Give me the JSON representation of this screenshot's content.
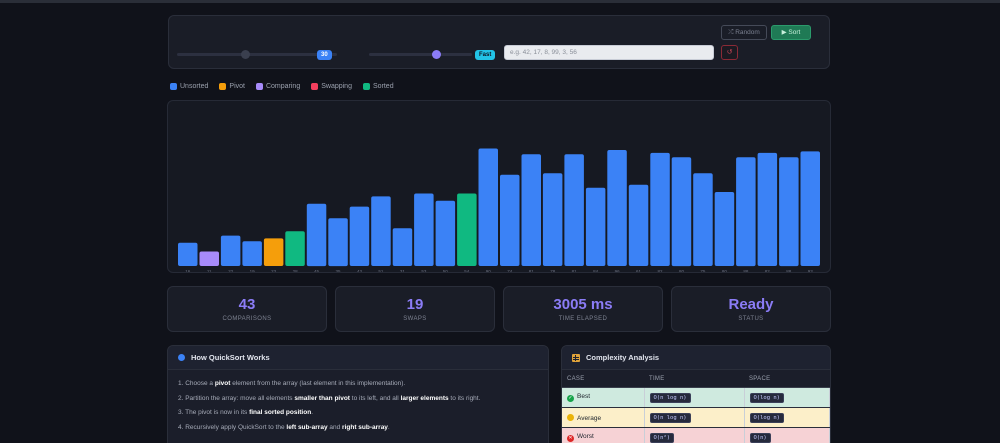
{
  "controls": {
    "size_value": "30",
    "speed_label": "Fast",
    "array_input_placeholder": "e.g. 42, 17, 8, 99, 3, 56",
    "random_button": "⤮ Random",
    "sort_button": "▶ Sort",
    "reset_button": "↺",
    "size_slider_level": 0.5,
    "speed_slider_level": 0.67
  },
  "legend": [
    {
      "label": "Unsorted",
      "color": "#3b82f6"
    },
    {
      "label": "Pivot",
      "color": "#f59e0b"
    },
    {
      "label": "Comparing",
      "color": "#a78bfa"
    },
    {
      "label": "Swapping",
      "color": "#f43f5e"
    },
    {
      "label": "Sorted",
      "color": "#10b981"
    }
  ],
  "chart_data": {
    "type": "bar",
    "values": [
      16,
      11,
      22,
      19,
      23,
      28,
      45,
      35,
      43,
      51,
      31,
      53,
      50,
      54,
      90,
      74,
      81,
      78,
      81,
      84,
      96,
      61,
      82,
      80,
      75,
      80,
      88,
      82,
      88,
      93
    ],
    "heights": [
      16,
      10,
      21,
      17,
      19,
      24,
      43,
      33,
      41,
      48,
      26,
      50,
      45,
      50,
      81,
      63,
      77,
      64,
      77,
      54,
      80,
      56,
      78,
      75,
      64,
      51,
      75,
      78,
      75,
      79
    ],
    "states": [
      "unsorted",
      "comparing",
      "unsorted",
      "unsorted",
      "pivot",
      "sorted",
      "unsorted",
      "unsorted",
      "unsorted",
      "unsorted",
      "unsorted",
      "unsorted",
      "unsorted",
      "sorted",
      "unsorted",
      "unsorted",
      "unsorted",
      "unsorted",
      "unsorted",
      "unsorted",
      "unsorted",
      "unsorted",
      "unsorted",
      "unsorted",
      "unsorted",
      "unsorted",
      "unsorted",
      "unsorted",
      "unsorted",
      "unsorted"
    ],
    "colors": {
      "unsorted": "#3b82f6",
      "pivot": "#f59e0b",
      "comparing": "#a78bfa",
      "swapping": "#f43f5e",
      "sorted": "#10b981"
    },
    "ylim": [
      0,
      100
    ]
  },
  "stats": [
    {
      "value": "43",
      "label": "COMPARISONS"
    },
    {
      "value": "19",
      "label": "SWAPS"
    },
    {
      "value": "3005 ms",
      "label": "TIME ELAPSED"
    },
    {
      "value": "Ready",
      "label": "STATUS"
    }
  ],
  "howto": {
    "title": "How QuickSort Works"
  },
  "complexity": {
    "title": "Complexity Analysis",
    "headers": [
      "CASE",
      "TIME",
      "SPACE"
    ],
    "rows": [
      {
        "case": "Best",
        "time": "O(n log n)",
        "space": "O(log n)",
        "icon_color": "#16a34a",
        "icon_glyph": "✓"
      },
      {
        "case": "Average",
        "time": "O(n log n)",
        "space": "O(log n)",
        "icon_color": "#eab308",
        "icon_glyph": ""
      },
      {
        "case": "Worst",
        "time": "O(n²)",
        "space": "O(n)",
        "icon_color": "#dc2626",
        "icon_glyph": "✕"
      }
    ]
  }
}
